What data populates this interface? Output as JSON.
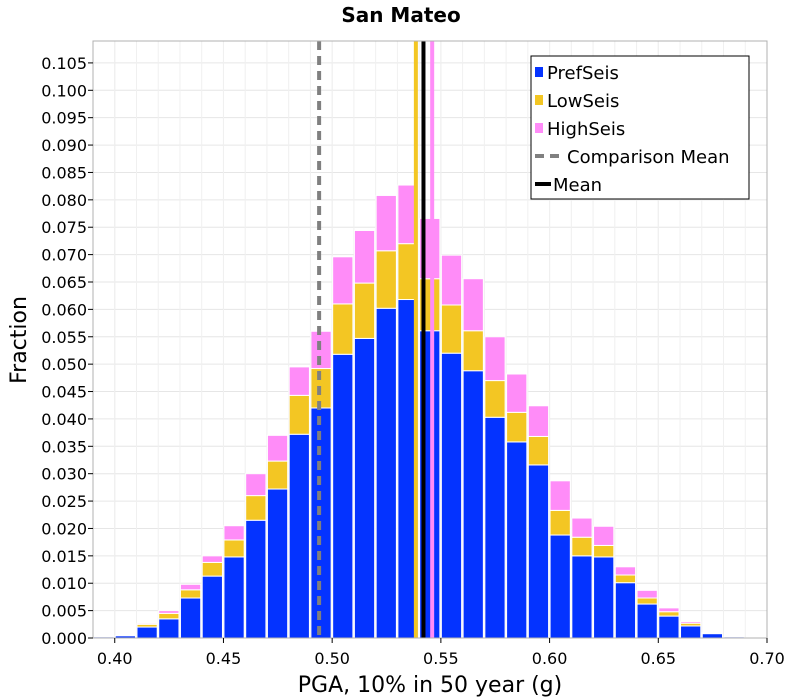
{
  "chart_data": {
    "type": "bar",
    "stacked": true,
    "title": "San Mateo",
    "xlabel": "PGA, 10% in 50 year (g)",
    "ylabel": "Fraction",
    "xlim": [
      0.39,
      0.7
    ],
    "ylim": [
      0.0,
      0.109
    ],
    "bin_width": 0.01,
    "x_ticks": [
      "0.40",
      "0.45",
      "0.50",
      "0.55",
      "0.60",
      "0.65",
      "0.70"
    ],
    "y_ticks": [
      "0.000",
      "0.005",
      "0.010",
      "0.015",
      "0.020",
      "0.025",
      "0.030",
      "0.035",
      "0.040",
      "0.045",
      "0.050",
      "0.055",
      "0.060",
      "0.065",
      "0.070",
      "0.075",
      "0.080",
      "0.085",
      "0.090",
      "0.095",
      "0.100",
      "0.105"
    ],
    "grid": true,
    "legend_position": "top-right",
    "bin_centers": [
      0.395,
      0.405,
      0.415,
      0.425,
      0.435,
      0.445,
      0.455,
      0.465,
      0.475,
      0.485,
      0.495,
      0.505,
      0.515,
      0.525,
      0.535,
      0.545,
      0.555,
      0.565,
      0.575,
      0.585,
      0.595,
      0.605,
      0.615,
      0.625,
      0.635,
      0.645,
      0.655,
      0.665,
      0.675,
      0.685,
      0.695
    ],
    "series": [
      {
        "name": "PrefSeis",
        "color": "#0433ff",
        "values": [
          0.0002,
          0.0004,
          0.002,
          0.0035,
          0.0073,
          0.0113,
          0.0148,
          0.0215,
          0.0272,
          0.0372,
          0.042,
          0.0518,
          0.0547,
          0.0602,
          0.0618,
          0.0561,
          0.052,
          0.0488,
          0.0403,
          0.0358,
          0.0316,
          0.0188,
          0.015,
          0.0148,
          0.0101,
          0.0062,
          0.004,
          0.0022,
          0.0008,
          0.0002,
          0.0001
        ]
      },
      {
        "name": "LowSeis",
        "color": "#f3c623",
        "values": [
          0.0,
          0.0,
          0.0005,
          0.001,
          0.0015,
          0.0025,
          0.0031,
          0.0045,
          0.0051,
          0.0071,
          0.0072,
          0.0092,
          0.0101,
          0.0105,
          0.0102,
          0.0095,
          0.0088,
          0.0073,
          0.0067,
          0.0054,
          0.0052,
          0.0045,
          0.0034,
          0.0021,
          0.0014,
          0.0011,
          0.0008,
          0.0005,
          0.0001,
          0.0,
          0.0
        ]
      },
      {
        "name": "HighSeis",
        "color": "#ff8cf8",
        "values": [
          0.0,
          0.0,
          0.0002,
          0.0005,
          0.001,
          0.0012,
          0.0026,
          0.004,
          0.0047,
          0.0052,
          0.0068,
          0.0086,
          0.0096,
          0.0101,
          0.0107,
          0.011,
          0.0091,
          0.0095,
          0.008,
          0.007,
          0.0056,
          0.0054,
          0.0035,
          0.0035,
          0.0015,
          0.0014,
          0.0007,
          0.0003,
          0.0001,
          0.0,
          0.0
        ]
      }
    ],
    "lines": [
      {
        "name": "Comparison Mean",
        "x": 0.494,
        "color": "#808080",
        "style": "dashed"
      },
      {
        "name": "Mean",
        "x": 0.542,
        "color": "#000000",
        "style": "solid"
      },
      {
        "name": "LowSeis mean",
        "x": 0.5385,
        "color": "#f3c623",
        "style": "solid",
        "in_legend": false
      },
      {
        "name": "HighSeis mean",
        "x": 0.546,
        "color": "#ff8cf8",
        "style": "solid",
        "in_legend": false
      }
    ]
  }
}
